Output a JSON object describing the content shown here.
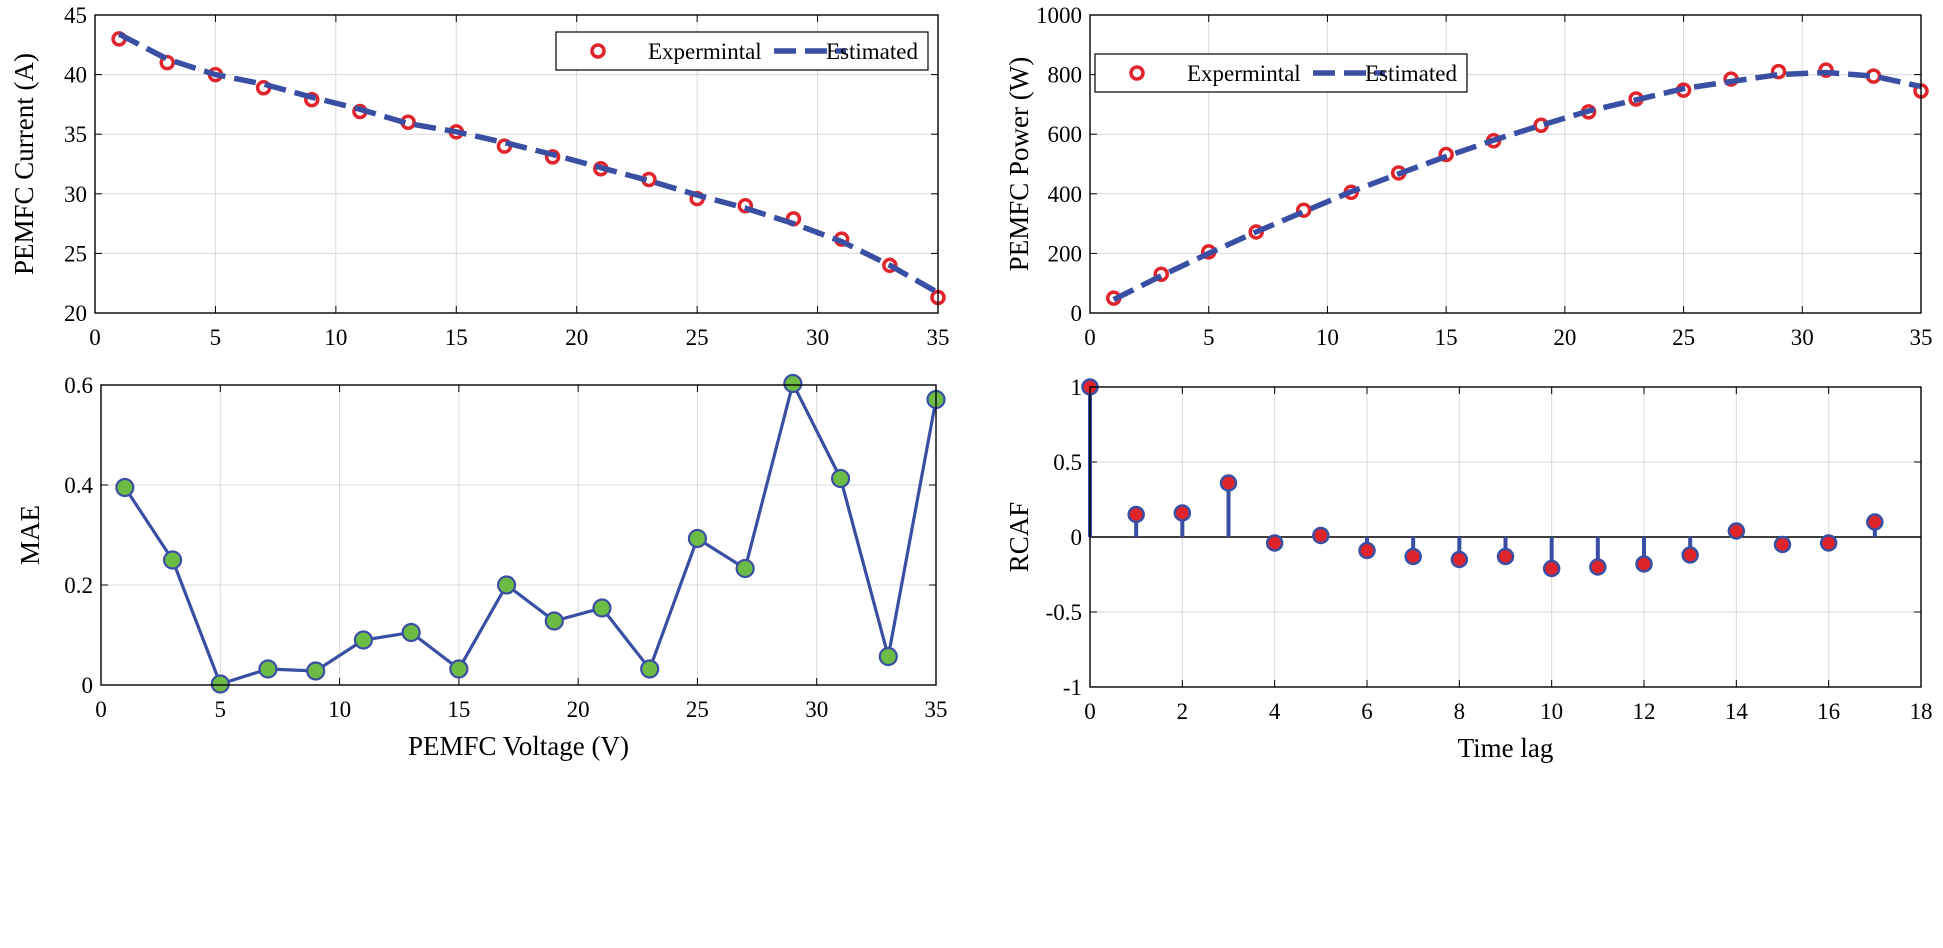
{
  "chart_data": [
    {
      "id": "current",
      "type": "line",
      "title": "",
      "xlabel": "",
      "ylabel": "PEMFC Current (A)",
      "xlim": [
        0,
        35
      ],
      "ylim": [
        20,
        45
      ],
      "xticks": [
        0,
        5,
        10,
        15,
        20,
        25,
        30,
        35
      ],
      "yticks": [
        20,
        25,
        30,
        35,
        40,
        45
      ],
      "grid": true,
      "legend_position": "top-right",
      "series": [
        {
          "name": "Expermintal",
          "style": "red-open-circles",
          "x": [
            1,
            3,
            5,
            7,
            9,
            11,
            13,
            15,
            17,
            19,
            21,
            23,
            25,
            27,
            29,
            31,
            33,
            35
          ],
          "y": [
            43.0,
            41.0,
            40.0,
            38.9,
            37.9,
            36.9,
            36.0,
            35.2,
            34.0,
            33.1,
            32.1,
            31.2,
            29.6,
            29.0,
            27.9,
            26.2,
            24.0,
            21.3
          ]
        },
        {
          "name": "Estimated",
          "style": "blue-dashed",
          "x": [
            1,
            3,
            5,
            7,
            9,
            11,
            13,
            15,
            17,
            19,
            21,
            23,
            25,
            27,
            29,
            31,
            33,
            35
          ],
          "y": [
            43.4,
            41.3,
            40.0,
            39.2,
            38.1,
            37.1,
            35.9,
            35.2,
            34.3,
            33.3,
            32.2,
            31.1,
            29.9,
            28.8,
            27.5,
            26.0,
            24.0,
            21.7
          ]
        }
      ]
    },
    {
      "id": "power",
      "type": "line",
      "title": "",
      "xlabel": "",
      "ylabel": "PEMFC Power (W)",
      "xlim": [
        0,
        35
      ],
      "ylim": [
        0,
        1000
      ],
      "xticks": [
        0,
        5,
        10,
        15,
        20,
        25,
        30,
        35
      ],
      "yticks": [
        0,
        200,
        400,
        600,
        800,
        1000
      ],
      "grid": true,
      "legend_position": "top-left",
      "series": [
        {
          "name": "Expermintal",
          "style": "red-open-circles",
          "x": [
            1,
            3,
            5,
            7,
            9,
            11,
            13,
            15,
            17,
            19,
            21,
            23,
            25,
            27,
            29,
            31,
            33,
            35
          ],
          "y": [
            50,
            130,
            205,
            272,
            345,
            405,
            470,
            532,
            578,
            630,
            675,
            718,
            748,
            785,
            810,
            815,
            795,
            745
          ]
        },
        {
          "name": "Estimated",
          "style": "blue-dashed",
          "x": [
            1,
            3,
            5,
            7,
            9,
            11,
            13,
            15,
            17,
            19,
            21,
            23,
            25,
            27,
            29,
            31,
            33,
            35
          ],
          "y": [
            45,
            125,
            200,
            272,
            340,
            407,
            467,
            525,
            580,
            630,
            678,
            715,
            753,
            777,
            800,
            807,
            795,
            760
          ]
        }
      ]
    },
    {
      "id": "mae",
      "type": "line",
      "title": "",
      "xlabel": "PEMFC Voltage (V)",
      "ylabel": "MAE",
      "xlim": [
        0,
        35
      ],
      "ylim": [
        0,
        0.6
      ],
      "xticks": [
        0,
        5,
        10,
        15,
        20,
        25,
        30,
        35
      ],
      "yticks": [
        0,
        0.2,
        0.4,
        0.6
      ],
      "grid": true,
      "series": [
        {
          "name": "MAE",
          "style": "blue-line-green-markers",
          "x": [
            1,
            3,
            5,
            7,
            9,
            11,
            13,
            15,
            17,
            19,
            21,
            23,
            25,
            27,
            29,
            31,
            33,
            35
          ],
          "y": [
            0.395,
            0.25,
            0.002,
            0.032,
            0.028,
            0.09,
            0.105,
            0.032,
            0.2,
            0.128,
            0.154,
            0.032,
            0.293,
            0.233,
            0.603,
            0.413,
            0.057,
            0.571
          ]
        }
      ]
    },
    {
      "id": "rcaf",
      "type": "stem",
      "title": "",
      "xlabel": "Time lag",
      "ylabel": "RCAF",
      "xlim": [
        0,
        18
      ],
      "ylim": [
        -1,
        1
      ],
      "xticks": [
        0,
        2,
        4,
        6,
        8,
        10,
        12,
        14,
        16,
        18
      ],
      "yticks": [
        -1,
        -0.5,
        0,
        0.5,
        1
      ],
      "grid": true,
      "series": [
        {
          "name": "RCAF",
          "style": "blue-stems-red-dots",
          "x": [
            0,
            1,
            2,
            3,
            4,
            5,
            6,
            7,
            8,
            9,
            10,
            11,
            12,
            13,
            14,
            15,
            16,
            17
          ],
          "y": [
            1.0,
            0.15,
            0.16,
            0.36,
            -0.04,
            0.01,
            -0.09,
            -0.13,
            -0.15,
            -0.13,
            -0.21,
            -0.2,
            -0.18,
            -0.12,
            0.04,
            -0.05,
            -0.04,
            0.1
          ]
        }
      ]
    }
  ],
  "colors": {
    "line_blue": "#3a4fa3",
    "marker_red": "#e0242b",
    "marker_green": "#6cbb45",
    "grid": "#d9d9d9",
    "axis": "#000000"
  }
}
